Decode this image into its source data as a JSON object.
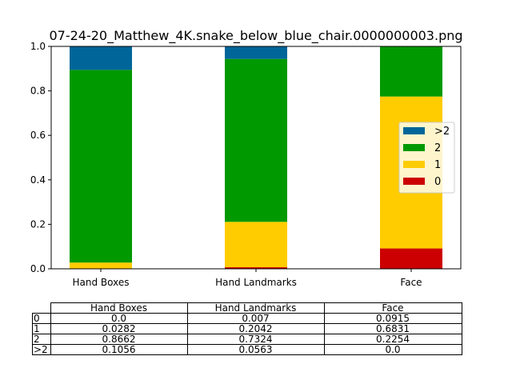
{
  "chart_data": {
    "type": "bar",
    "stacked": true,
    "title": "07-24-20_Matthew_4K.snake_below_blue_chair.0000000003.png",
    "xlabel": "",
    "ylabel": "",
    "ylim": [
      0,
      1.0
    ],
    "yticks": [
      "0.0",
      "0.2",
      "0.4",
      "0.6",
      "0.8",
      "1.0"
    ],
    "categories": [
      "Hand Boxes",
      "Hand Landmarks",
      "Face"
    ],
    "series": [
      {
        "name": "0",
        "values": [
          0.0,
          0.007,
          0.0915
        ],
        "color": "#cc0000"
      },
      {
        "name": "1",
        "values": [
          0.0282,
          0.2042,
          0.6831
        ],
        "color": "#ffcc00"
      },
      {
        "name": "2",
        "values": [
          0.8662,
          0.7324,
          0.2254
        ],
        "color": "#009900"
      },
      {
        "name": ">2",
        "values": [
          0.1056,
          0.0563,
          0.0
        ],
        "color": "#006699"
      }
    ],
    "legend_order": [
      ">2",
      "2",
      "1",
      "0"
    ],
    "legend": "right",
    "grid": false,
    "table": {
      "col_headers": [
        "Hand Boxes",
        "Hand Landmarks",
        "Face"
      ],
      "rows": [
        {
          "label": "0",
          "cells": [
            "0.0",
            "0.007",
            "0.0915"
          ]
        },
        {
          "label": "1",
          "cells": [
            "0.0282",
            "0.2042",
            "0.6831"
          ]
        },
        {
          "label": "2",
          "cells": [
            "0.8662",
            "0.7324",
            "0.2254"
          ]
        },
        {
          "label": ">2",
          "cells": [
            "0.1056",
            "0.0563",
            "0.0"
          ]
        }
      ]
    }
  }
}
